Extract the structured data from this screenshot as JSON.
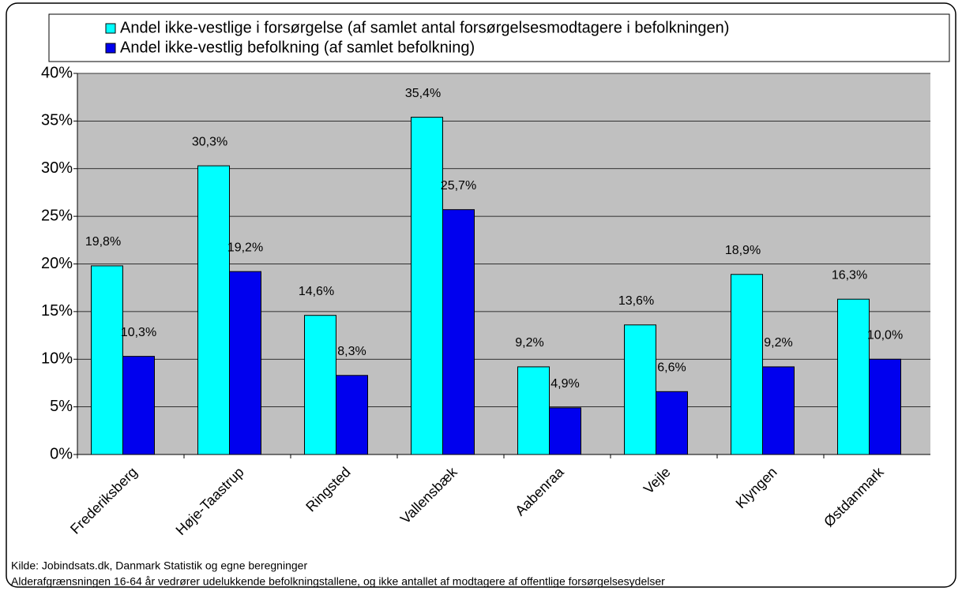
{
  "chart_data": {
    "type": "bar",
    "legend_position": "top",
    "categories": [
      "Frederiksberg",
      "Høje-Taastrup",
      "Ringsted",
      "Vallensbæk",
      "Aabenraa",
      "Vejle",
      "Klyngen",
      "Østdanmark"
    ],
    "series": [
      {
        "name": "Andel ikke-vestlige i forsørgelse (af samlet antal forsørgelsesmodtagere i befolkningen)",
        "color": "#00ffff",
        "values": [
          19.8,
          30.3,
          14.6,
          35.4,
          9.2,
          13.6,
          18.9,
          16.3
        ],
        "value_labels": [
          "19,8%",
          "30,3%",
          "14,6%",
          "35,4%",
          "9,2%",
          "13,6%",
          "18,9%",
          "16,3%"
        ]
      },
      {
        "name": "Andel ikke-vestlig befolkning (af samlet befolkning)",
        "color": "#0000ee",
        "values": [
          10.3,
          19.2,
          8.3,
          25.7,
          4.9,
          6.6,
          9.2,
          10.0
        ],
        "value_labels": [
          "10,3%",
          "19,2%",
          "8,3%",
          "25,7%",
          "4,9%",
          "6,6%",
          "9,2%",
          "10,0%"
        ]
      }
    ],
    "ylim": [
      0,
      40
    ],
    "yticks": [
      {
        "value": 0,
        "label": "0%"
      },
      {
        "value": 5,
        "label": "5%"
      },
      {
        "value": 10,
        "label": "10%"
      },
      {
        "value": 15,
        "label": "15%"
      },
      {
        "value": 20,
        "label": "20%"
      },
      {
        "value": 25,
        "label": "25%"
      },
      {
        "value": 30,
        "label": "30%"
      },
      {
        "value": 35,
        "label": "35%"
      },
      {
        "value": 40,
        "label": "40%"
      }
    ],
    "grid": true,
    "notes": [
      "Kilde: Jobindsats.dk, Danmark Statistik og egne beregninger",
      "Alderafgrænsningen 16-64 år vedrører udelukkende befolkningstallene, og ikke antallet af modtagere af offentlige forsørgelsesydelser"
    ]
  }
}
